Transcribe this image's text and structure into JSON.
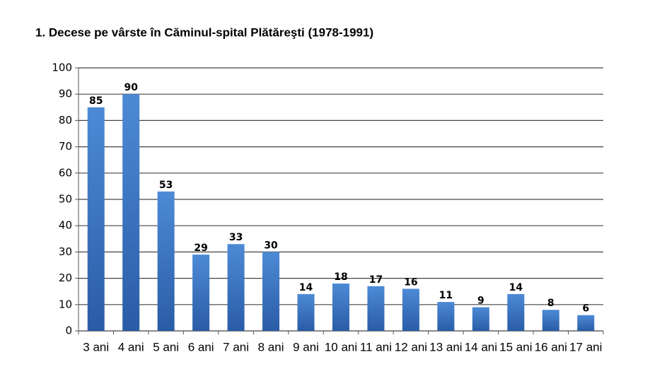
{
  "chart_data": {
    "type": "bar",
    "title": "1. Decese pe vârste în Căminul-spital Plătăreşti (1978-1991)",
    "categories": [
      "3 ani",
      "4 ani",
      "5 ani",
      "6 ani",
      "7 ani",
      "8 ani",
      "9 ani",
      "10 ani",
      "11 ani",
      "12 ani",
      "13 ani",
      "14 ani",
      "15 ani",
      "16 ani",
      "17 ani"
    ],
    "values": [
      85,
      90,
      53,
      29,
      33,
      30,
      14,
      18,
      17,
      16,
      11,
      9,
      14,
      8,
      6
    ],
    "color": "#3a74c2",
    "ylim": [
      0,
      100
    ],
    "yticks": [
      0,
      10,
      20,
      30,
      40,
      50,
      60,
      70,
      80,
      90,
      100
    ],
    "grid": true
  }
}
